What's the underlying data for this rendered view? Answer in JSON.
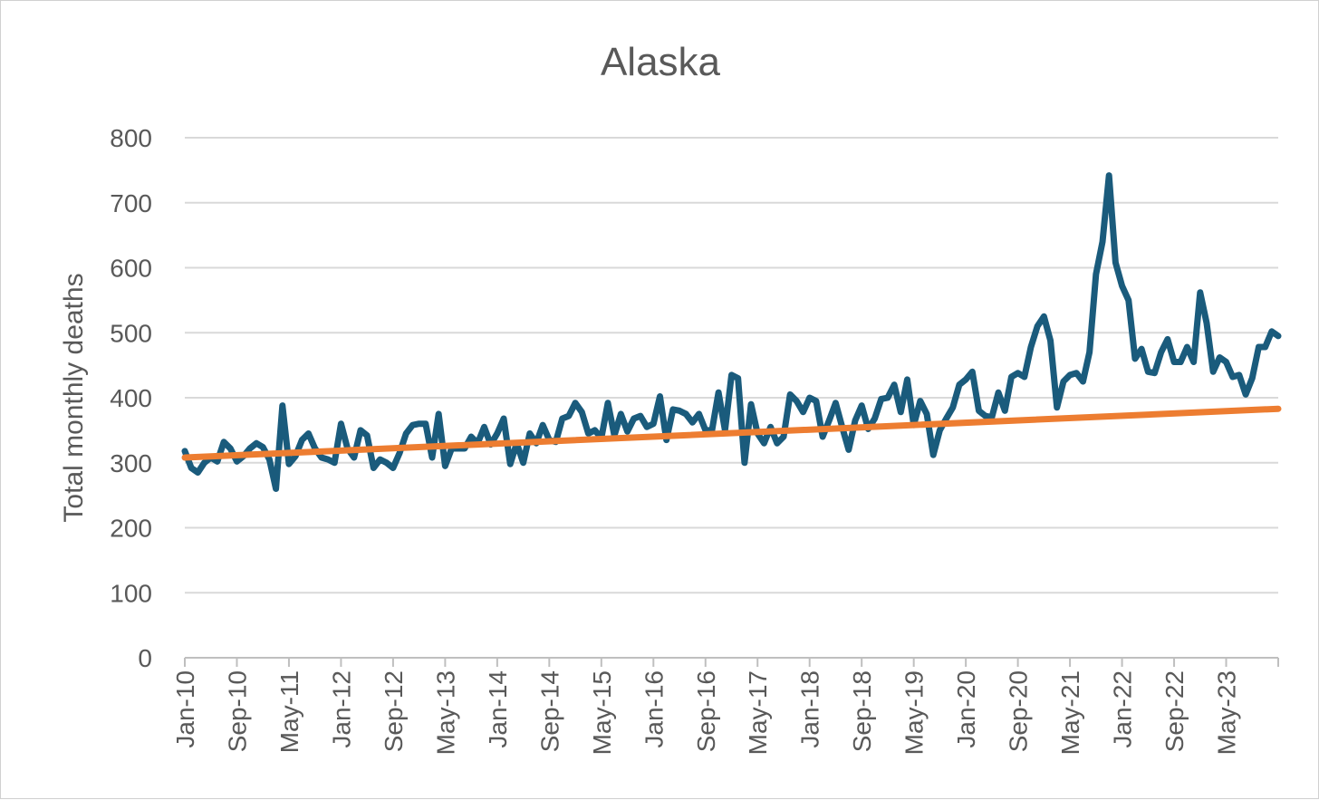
{
  "chart_data": {
    "type": "line",
    "title": "Alaska",
    "xlabel": "",
    "ylabel": "Total monthly deaths",
    "ylim": [
      0,
      800
    ],
    "yticks": [
      0,
      100,
      200,
      300,
      400,
      500,
      600,
      700,
      800
    ],
    "grid": true,
    "legend": "none",
    "x_start": "Jan-10",
    "x_interval_months": 1,
    "x_tick_labels": [
      "Jan-10",
      "Sep-10",
      "May-11",
      "Jan-12",
      "Sep-12",
      "May-13",
      "Jan-14",
      "Sep-14",
      "May-15",
      "Jan-16",
      "Sep-16",
      "May-17",
      "Jan-18",
      "Sep-18",
      "May-19",
      "Jan-20",
      "Sep-20",
      "May-21",
      "Jan-22",
      "Sep-22",
      "May-23"
    ],
    "x_tick_every_months": 8,
    "series": [
      {
        "color": "#1a5b7c",
        "values": [
          318,
          292,
          285,
          300,
          308,
          302,
          332,
          322,
          302,
          310,
          322,
          330,
          324,
          305,
          260,
          388,
          298,
          310,
          335,
          345,
          322,
          308,
          305,
          300,
          360,
          322,
          308,
          350,
          342,
          292,
          305,
          300,
          292,
          315,
          345,
          358,
          360,
          360,
          308,
          375,
          295,
          322,
          322,
          322,
          340,
          330,
          355,
          328,
          345,
          368,
          298,
          330,
          300,
          345,
          330,
          358,
          335,
          332,
          368,
          372,
          392,
          378,
          345,
          350,
          338,
          392,
          342,
          375,
          348,
          368,
          372,
          355,
          360,
          402,
          335,
          382,
          380,
          375,
          362,
          375,
          350,
          350,
          408,
          350,
          435,
          430,
          300,
          390,
          345,
          330,
          355,
          330,
          340,
          405,
          395,
          378,
          400,
          395,
          340,
          365,
          392,
          355,
          320,
          365,
          388,
          352,
          368,
          398,
          400,
          420,
          378,
          428,
          358,
          395,
          375,
          312,
          350,
          368,
          385,
          420,
          428,
          440,
          380,
          372,
          370,
          408,
          380,
          432,
          438,
          432,
          478,
          510,
          525,
          488,
          385,
          425,
          435,
          438,
          425,
          470,
          590,
          640,
          742,
          608,
          572,
          550,
          460,
          475,
          440,
          438,
          470,
          490,
          455,
          455,
          478,
          455,
          562,
          515,
          440,
          462,
          455,
          432,
          435,
          405,
          430,
          478,
          478,
          502,
          495
        ]
      },
      {
        "color": "#ed7d31",
        "values": [
          308,
          383
        ]
      }
    ]
  }
}
